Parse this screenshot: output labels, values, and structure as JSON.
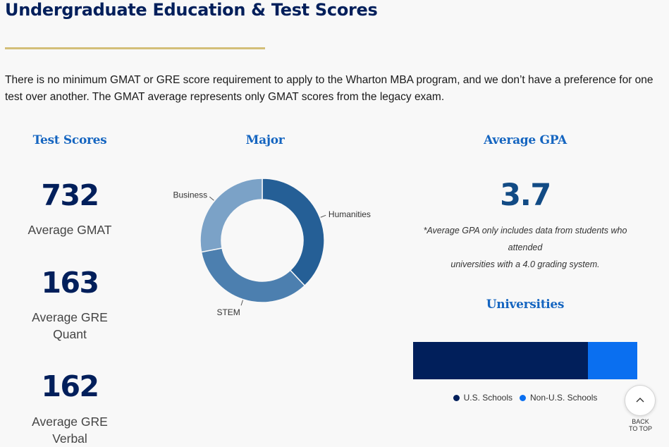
{
  "page": {
    "title": "Undergraduate Education & Test Scores",
    "intro": "There is no minimum GMAT or GRE score requirement to apply to the Wharton MBA program, and we don’t have a preference for one test over another. The GMAT average represents only GMAT scores from the legacy exam."
  },
  "test_scores": {
    "title": "Test Scores",
    "items": [
      {
        "value": "732",
        "label_line1": "Average GMAT",
        "label_line2": ""
      },
      {
        "value": "163",
        "label_line1": "Average GRE",
        "label_line2": "Quant"
      },
      {
        "value": "162",
        "label_line1": "Average GRE",
        "label_line2": "Verbal"
      }
    ]
  },
  "major": {
    "title": "Major"
  },
  "gpa": {
    "title": "Average GPA",
    "value": "3.7",
    "note_line1": "*Average GPA only includes data from students who attended",
    "note_line2": "universities with a 4.0 grading system."
  },
  "universities": {
    "title": "Universities"
  },
  "back_to_top": {
    "line1": "BACK",
    "line2": "TO TOP",
    "icon": "chevron-up-icon"
  },
  "chart_data": [
    {
      "type": "pie",
      "variant": "donut",
      "title": "Major",
      "categories": [
        "Humanities",
        "STEM",
        "Business"
      ],
      "values": [
        38,
        34,
        28
      ],
      "colors": [
        "#255f96",
        "#4c7faf",
        "#7ba2c7"
      ],
      "legend": "labels-outside"
    },
    {
      "type": "bar",
      "variant": "stacked-horizontal",
      "title": "Universities",
      "categories": [
        "U.S. Schools",
        "Non-U.S. Schools"
      ],
      "values": [
        78,
        22
      ],
      "colors": [
        "#011f5b",
        "#0a6ff0"
      ],
      "legend": "bottom-center"
    }
  ]
}
